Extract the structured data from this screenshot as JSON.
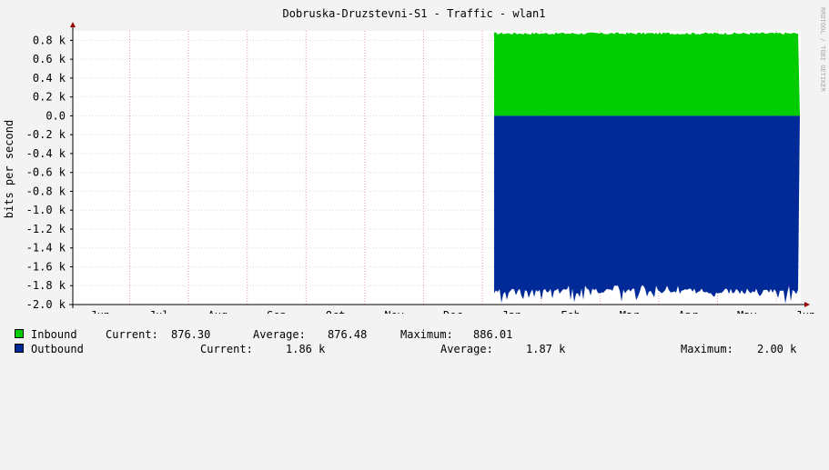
{
  "chart_data": {
    "type": "area",
    "title": "Dobruska-Druzstevni-S1 - Traffic - wlan1",
    "ylabel": "bits per second",
    "watermark": "RRDTOOL / TOBI OETIKER",
    "ylim": [
      -2000,
      900
    ],
    "yticks": [
      {
        "value": 800,
        "label": "0.8 k"
      },
      {
        "value": 600,
        "label": "0.6 k"
      },
      {
        "value": 400,
        "label": "0.4 k"
      },
      {
        "value": 200,
        "label": "0.2 k"
      },
      {
        "value": 0,
        "label": "0.0"
      },
      {
        "value": -200,
        "label": "-0.2 k"
      },
      {
        "value": -400,
        "label": "-0.4 k"
      },
      {
        "value": -600,
        "label": "-0.6 k"
      },
      {
        "value": -800,
        "label": "-0.8 k"
      },
      {
        "value": -1000,
        "label": "-1.0 k"
      },
      {
        "value": -1200,
        "label": "-1.2 k"
      },
      {
        "value": -1400,
        "label": "-1.4 k"
      },
      {
        "value": -1600,
        "label": "-1.6 k"
      },
      {
        "value": -1800,
        "label": "-1.8 k"
      },
      {
        "value": -2000,
        "label": "-2.0 k"
      }
    ],
    "months": [
      "Jun",
      "Jul",
      "Aug",
      "Sep",
      "Oct",
      "Nov",
      "Dec",
      "Jan",
      "Feb",
      "Mar",
      "Apr",
      "May",
      "Jun"
    ],
    "data_start_month_index": 6.7,
    "data_end_month_index": 11.9,
    "series": [
      {
        "name": "Inbound",
        "color": "#00cc00",
        "approx_level": 876,
        "range": [
          860,
          886
        ]
      },
      {
        "name": "Outbound",
        "color": "#002a97",
        "approx_level": -1870,
        "range": [
          -2000,
          -1800
        ]
      }
    ],
    "legend": [
      {
        "name": "Inbound",
        "color": "#00cc00",
        "current_label": "Current:",
        "current": "876.30",
        "average_label": "Average:",
        "average": "876.48",
        "maximum_label": "Maximum:",
        "maximum": "886.01"
      },
      {
        "name": "Outbound",
        "color": "#002a97",
        "current_label": "Current:",
        "current": "1.86 k",
        "average_label": "Average:",
        "average": "1.87 k",
        "maximum_label": "Maximum:",
        "maximum": "2.00 k"
      }
    ],
    "grid": true
  }
}
